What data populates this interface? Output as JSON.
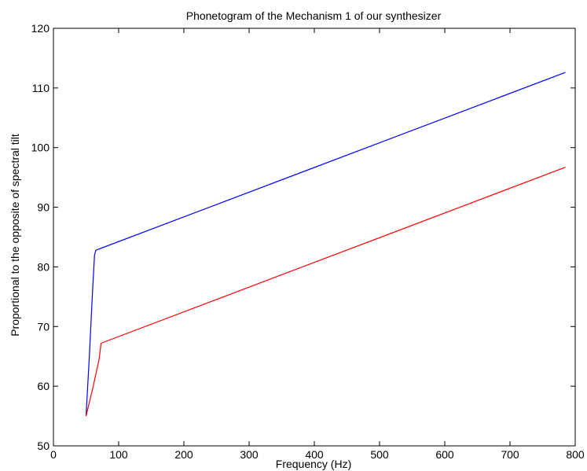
{
  "chart_data": {
    "type": "line",
    "title": "Phonetogram of the Mechanism 1 of our synthesizer",
    "xlabel": "Frequency (Hz)",
    "ylabel": "Proportional to the opposite of spectral tilt",
    "xlim": [
      0,
      800
    ],
    "ylim": [
      50,
      120
    ],
    "xticks": [
      0,
      100,
      200,
      300,
      400,
      500,
      600,
      700,
      800
    ],
    "yticks": [
      50,
      60,
      70,
      80,
      90,
      100,
      110,
      120
    ],
    "grid": false,
    "series": [
      {
        "color": "#0000ff",
        "x": [
          50,
          55,
          60,
          63,
          65,
          785
        ],
        "y": [
          55.0,
          65,
          76,
          82,
          82.8,
          112.6
        ]
      },
      {
        "color": "#ff0000",
        "x": [
          50,
          60,
          70,
          73,
          785
        ],
        "y": [
          55.0,
          59.5,
          64.5,
          67.2,
          96.7
        ]
      }
    ]
  }
}
